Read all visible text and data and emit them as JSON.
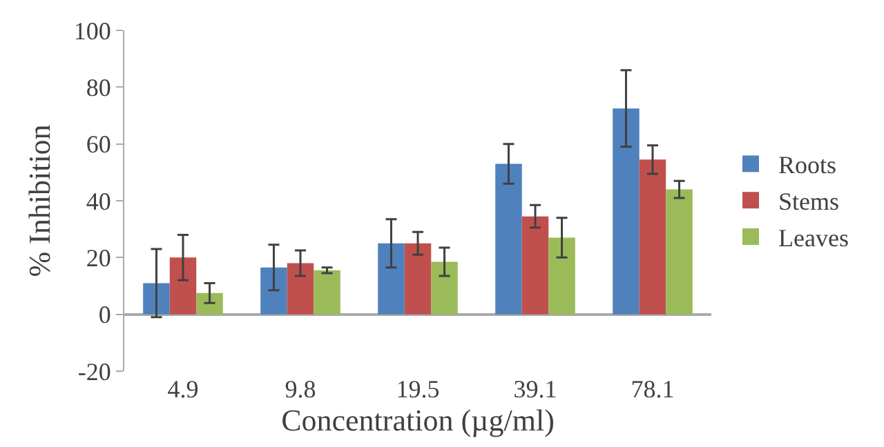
{
  "chart_data": {
    "type": "bar",
    "xlabel": "Concentration (µg/ml)",
    "ylabel": "% Inhibition",
    "categories": [
      "4.9",
      "9.8",
      "19.5",
      "39.1",
      "78.1"
    ],
    "series": [
      {
        "name": "Roots",
        "color": "#4f81bd",
        "values": [
          11,
          16.5,
          25,
          53,
          72.5
        ],
        "errors": [
          12,
          8,
          8.5,
          7,
          13.5
        ]
      },
      {
        "name": "Stems",
        "color": "#c0504d",
        "values": [
          20,
          18,
          25,
          34.5,
          54.5
        ],
        "errors": [
          8,
          4.5,
          4,
          4,
          5
        ]
      },
      {
        "name": "Leaves",
        "color": "#9bbb59",
        "values": [
          7.5,
          15.5,
          18.5,
          27,
          44
        ],
        "errors": [
          3.5,
          1,
          5,
          7,
          3
        ]
      }
    ],
    "ylim": [
      -20,
      100
    ],
    "yticks": [
      -20,
      0,
      20,
      40,
      60,
      80,
      100
    ],
    "grid": false,
    "legend": "right"
  }
}
